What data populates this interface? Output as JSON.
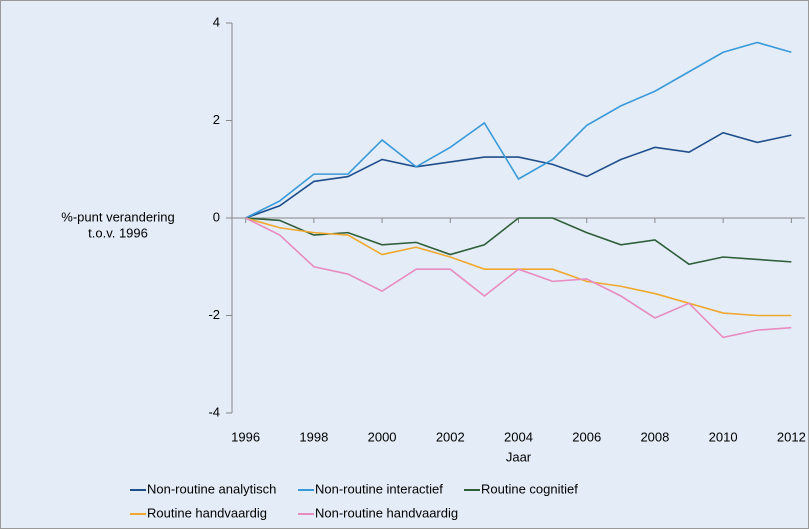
{
  "chart_data": {
    "type": "line",
    "ylabel": [
      "%-punt verandering",
      "t.o.v. 1996"
    ],
    "xlabel": "Jaar",
    "x": [
      1996,
      1997,
      1998,
      1999,
      2000,
      2001,
      2002,
      2003,
      2004,
      2005,
      2006,
      2007,
      2008,
      2009,
      2010,
      2011,
      2012
    ],
    "xlim": [
      1995.6,
      2012.4
    ],
    "xticks": [
      1996,
      1998,
      2000,
      2002,
      2004,
      2006,
      2008,
      2010,
      2012
    ],
    "ylim": [
      -4,
      4
    ],
    "yticks": [
      -4,
      -2,
      0,
      2,
      4
    ],
    "series": [
      {
        "name": "Non-routine analytisch",
        "color": "#1f4e8c",
        "values": [
          0,
          0.25,
          0.75,
          0.85,
          1.2,
          1.05,
          1.15,
          1.25,
          1.25,
          1.1,
          0.85,
          1.2,
          1.45,
          1.35,
          1.75,
          1.55,
          1.7
        ]
      },
      {
        "name": "Non-routine interactief",
        "color": "#3a9ad9",
        "values": [
          0,
          0.35,
          0.9,
          0.9,
          1.6,
          1.05,
          1.45,
          1.95,
          0.8,
          1.2,
          1.9,
          2.3,
          2.6,
          3.0,
          3.4,
          3.6,
          3.4
        ]
      },
      {
        "name": "Routine cognitief",
        "color": "#2e5e3a",
        "values": [
          0,
          -0.05,
          -0.35,
          -0.3,
          -0.55,
          -0.5,
          -0.75,
          -0.55,
          0,
          0,
          -0.3,
          -0.55,
          -0.45,
          -0.95,
          -0.8,
          -0.85,
          -0.9
        ]
      },
      {
        "name": "Routine handvaardig",
        "color": "#f0a830",
        "values": [
          0,
          -0.2,
          -0.3,
          -0.35,
          -0.75,
          -0.6,
          -0.8,
          -1.05,
          -1.05,
          -1.05,
          -1.3,
          -1.4,
          -1.55,
          -1.75,
          -1.95,
          -2.0,
          -2.0
        ]
      },
      {
        "name": "Non-routine handvaardig",
        "color": "#e88bc0",
        "values": [
          0,
          -0.35,
          -1.0,
          -1.15,
          -1.5,
          -1.05,
          -1.05,
          -1.6,
          -1.05,
          -1.3,
          -1.25,
          -1.6,
          -2.05,
          -1.75,
          -2.45,
          -2.3,
          -2.25
        ]
      }
    ]
  }
}
